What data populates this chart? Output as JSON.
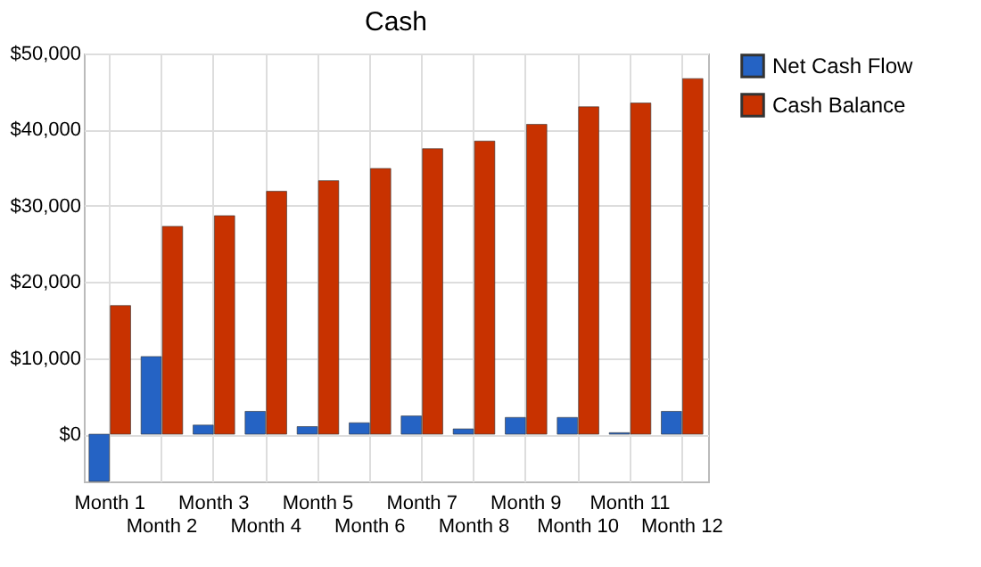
{
  "chart_data": {
    "type": "bar",
    "title": "Cash",
    "categories": [
      "Month 1",
      "Month 2",
      "Month 3",
      "Month 4",
      "Month 5",
      "Month 6",
      "Month 7",
      "Month 8",
      "Month 9",
      "Month 10",
      "Month 11",
      "Month 12"
    ],
    "series": [
      {
        "name": "Net Cash Flow",
        "color": "#2563c4",
        "values": [
          -6200,
          10200,
          1200,
          3000,
          1000,
          1500,
          2400,
          700,
          2200,
          2200,
          200,
          3000
        ]
      },
      {
        "name": "Cash Balance",
        "color": "#c83200",
        "values": [
          16900,
          27300,
          28700,
          31900,
          33300,
          34900,
          37500,
          38500,
          40700,
          43000,
          43500,
          46700
        ]
      }
    ],
    "ylim": [
      -6200,
      50000
    ],
    "yticks": [
      {
        "value": 0,
        "label": "$0"
      },
      {
        "value": 10000,
        "label": "$10,000"
      },
      {
        "value": 20000,
        "label": "$20,000"
      },
      {
        "value": 30000,
        "label": "$30,000"
      },
      {
        "value": 40000,
        "label": "$40,000"
      },
      {
        "value": 50000,
        "label": "$50,000"
      }
    ],
    "grid": true,
    "legend": "right"
  }
}
